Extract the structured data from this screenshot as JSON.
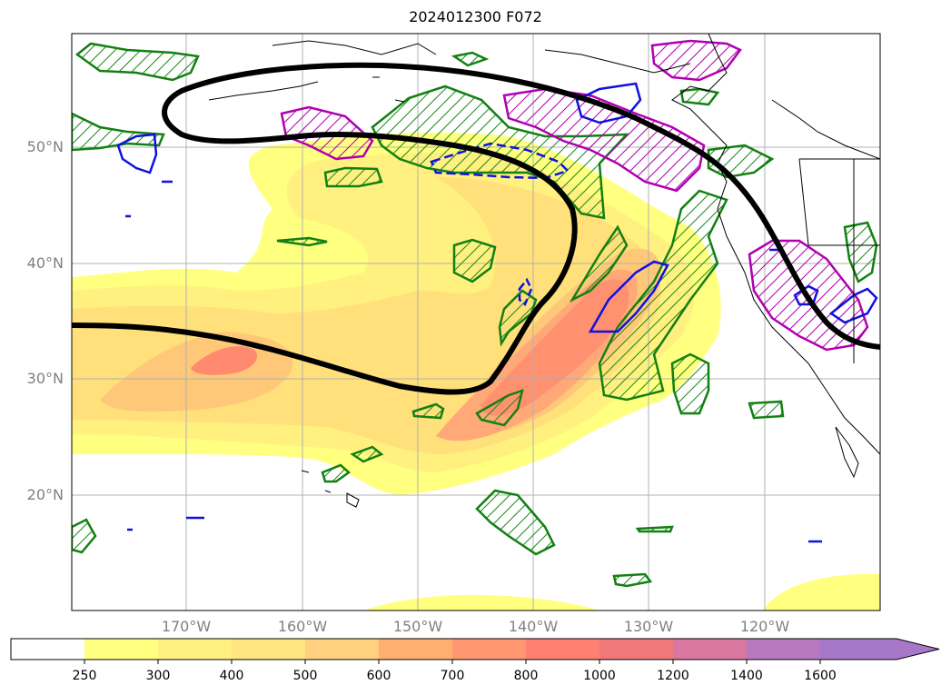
{
  "map": {
    "title": "2024012300 F072",
    "lat_labels": [
      "50°N",
      "40°N",
      "30°N",
      "20°N"
    ],
    "lon_labels": [
      "170°W",
      "160°W",
      "150°W",
      "140°W",
      "130°W",
      "120°W"
    ]
  },
  "legend": {
    "colorbar_ticks": [
      "250",
      "300",
      "400",
      "500",
      "600",
      "700",
      "800",
      "1000",
      "1200",
      "1400",
      "1600"
    ],
    "colors": [
      "#ffffff",
      "#ffff80",
      "#fff080",
      "#ffe680",
      "#ffd080",
      "#ffb070",
      "#ff9870",
      "#ff8070",
      "#f07878",
      "#d878a0",
      "#b878c0",
      "#a878c8"
    ]
  }
}
